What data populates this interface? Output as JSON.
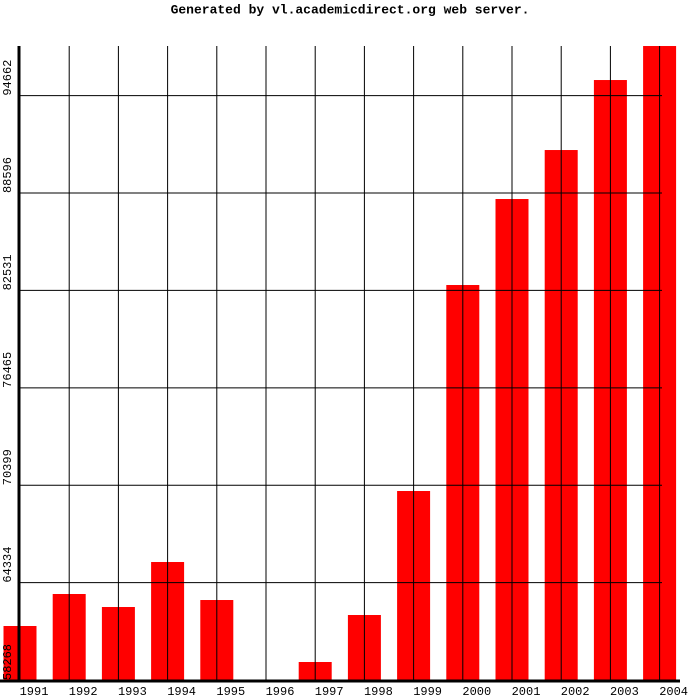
{
  "chart_data": {
    "type": "bar",
    "title": "Generated by vl.academicdirect.org web server.",
    "categories": [
      "1991",
      "1992",
      "1993",
      "1994",
      "1995",
      "1996",
      "1997",
      "1998",
      "1999",
      "2000",
      "2001",
      "2002",
      "2003",
      "2004"
    ],
    "values": [
      61631,
      63624,
      62814,
      65617,
      63250,
      58268,
      59389,
      62316,
      70039,
      82869,
      88225,
      91276,
      95636,
      97754
    ],
    "color": "#ff0000",
    "ylim": [
      58268,
      97755
    ],
    "yticks": [
      58268,
      64334,
      70399,
      76465,
      82531,
      88596,
      94662
    ],
    "grid": true
  }
}
